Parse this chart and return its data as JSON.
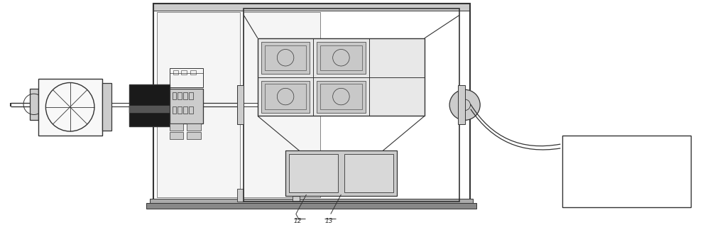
{
  "bg_color": "#ffffff",
  "dc": "#333333",
  "lc": "#555555",
  "gc": "#999999",
  "lgc": "#cccccc",
  "mgc": "#aaaaaa",
  "label_12": "12",
  "label_13": "13",
  "fig_width": 10.0,
  "fig_height": 3.17,
  "dpi": 100
}
